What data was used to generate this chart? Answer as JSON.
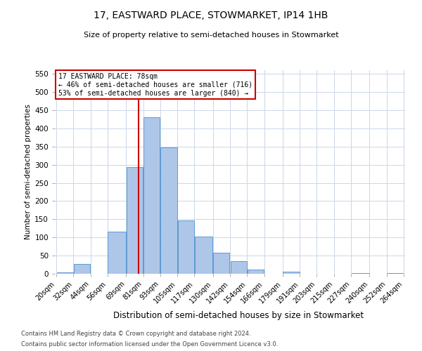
{
  "title": "17, EASTWARD PLACE, STOWMARKET, IP14 1HB",
  "subtitle": "Size of property relative to semi-detached houses in Stowmarket",
  "xlabel": "Distribution of semi-detached houses by size in Stowmarket",
  "ylabel": "Number of semi-detached properties",
  "annotation_title": "17 EASTWARD PLACE: 78sqm",
  "annotation_line1": "← 46% of semi-detached houses are smaller (716)",
  "annotation_line2": "53% of semi-detached houses are larger (840) →",
  "property_size": 78,
  "bar_left_edges": [
    20,
    32,
    44,
    56,
    69,
    81,
    93,
    105,
    117,
    130,
    142,
    154,
    166,
    179,
    191,
    203,
    215,
    227,
    240,
    252
  ],
  "bar_heights": [
    3,
    28,
    0,
    115,
    293,
    430,
    348,
    147,
    103,
    57,
    35,
    12,
    0,
    5,
    0,
    0,
    0,
    2,
    0,
    2
  ],
  "bar_color": "#aec6e8",
  "bar_edge_color": "#5b9bd5",
  "vline_x": 78,
  "vline_color": "#cc0000",
  "ylim": [
    0,
    560
  ],
  "yticks": [
    0,
    50,
    100,
    150,
    200,
    250,
    300,
    350,
    400,
    450,
    500,
    550
  ],
  "tick_labels": [
    "20sqm",
    "32sqm",
    "44sqm",
    "56sqm",
    "69sqm",
    "81sqm",
    "93sqm",
    "105sqm",
    "117sqm",
    "130sqm",
    "142sqm",
    "154sqm",
    "166sqm",
    "179sqm",
    "191sqm",
    "203sqm",
    "215sqm",
    "227sqm",
    "240sqm",
    "252sqm",
    "264sqm"
  ],
  "footer_line1": "Contains HM Land Registry data © Crown copyright and database right 2024.",
  "footer_line2": "Contains public sector information licensed under the Open Government Licence v3.0.",
  "bg_color": "#ffffff",
  "grid_color": "#ccd6e8",
  "annotation_box_color": "#ffffff",
  "annotation_box_edge": "#cc0000",
  "title_fontsize": 10,
  "subtitle_fontsize": 8,
  "ylabel_fontsize": 7.5,
  "xlabel_fontsize": 8.5,
  "tick_fontsize": 7,
  "annotation_fontsize": 7,
  "footer_fontsize": 6
}
